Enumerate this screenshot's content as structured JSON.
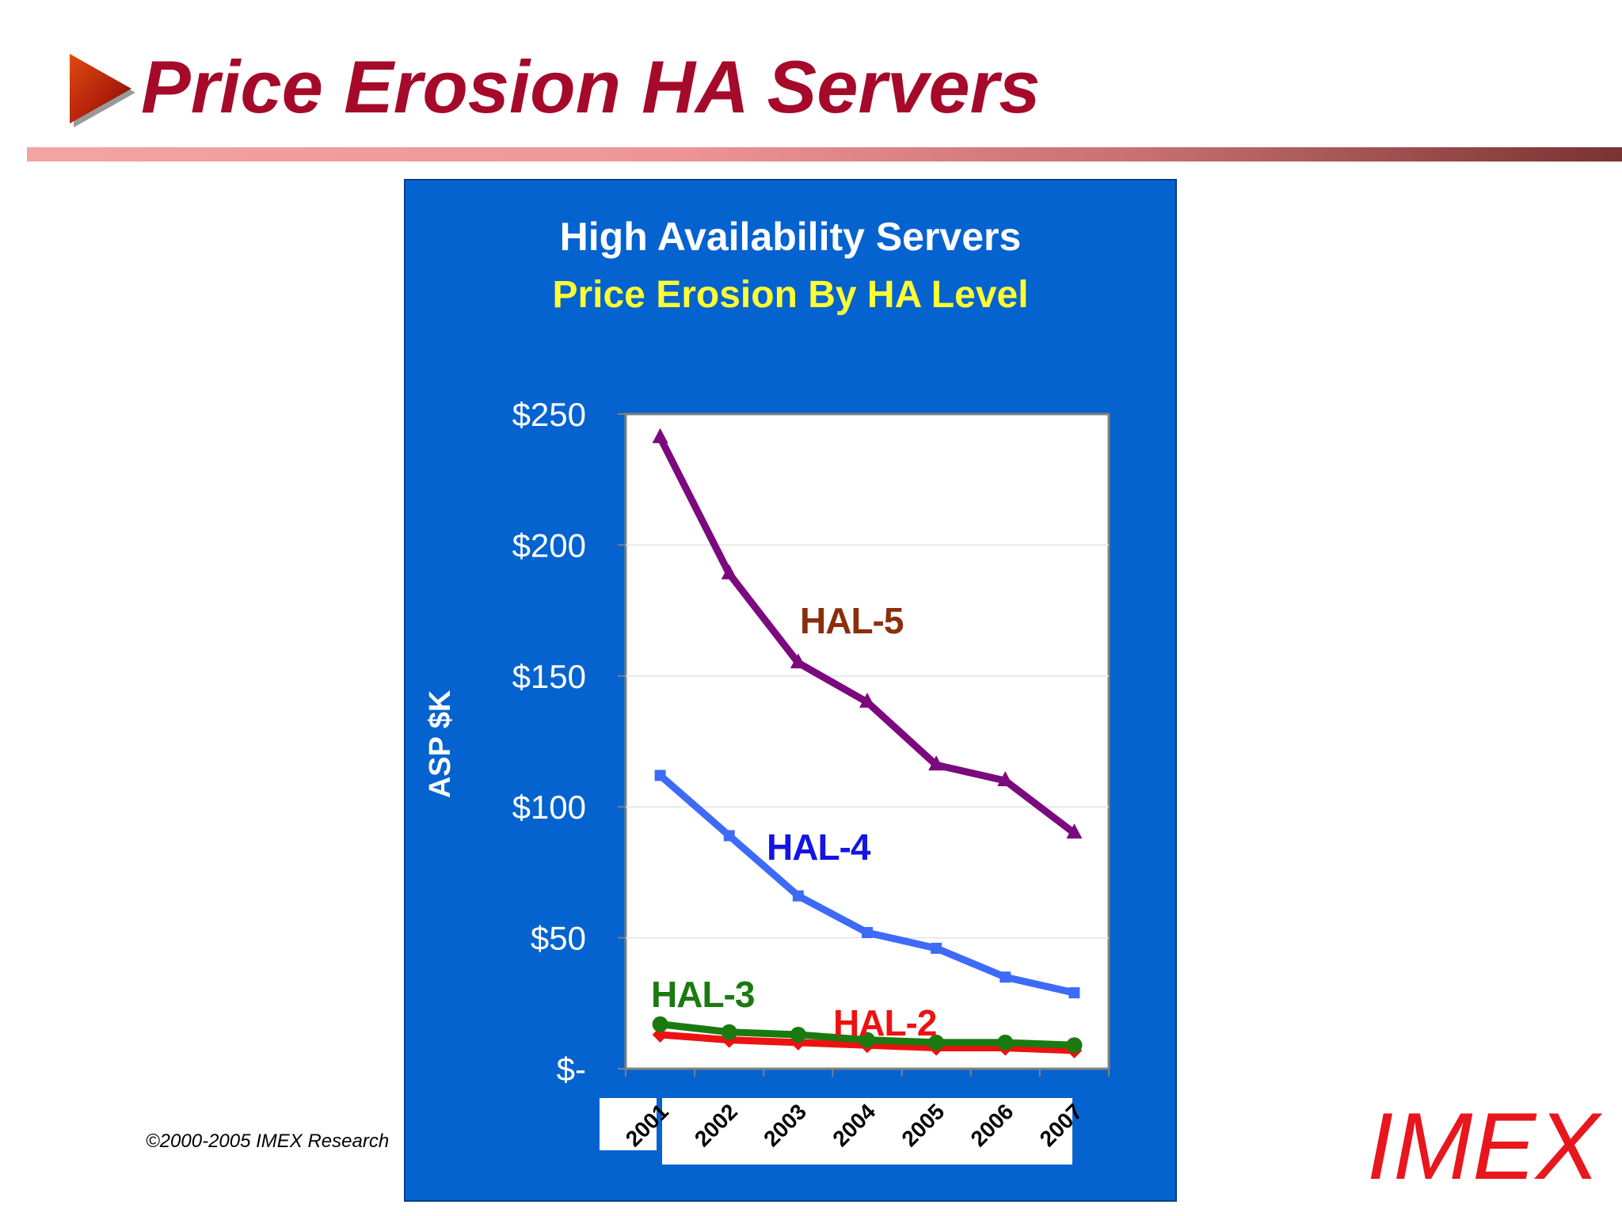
{
  "slide": {
    "title": "Price Erosion HA Servers",
    "copyright": "©2000-2005 IMEX Research",
    "logo": "IMEX",
    "title_color": "#a50a2a",
    "logo_color": "#e8161d",
    "bullet_icon": "play-triangle-icon"
  },
  "chart_data": {
    "type": "line",
    "title": "High Availability Servers",
    "subtitle": "Price Erosion By HA Level",
    "ylabel": "ASP $K",
    "xlabel": "",
    "ylim": [
      0,
      250
    ],
    "yticks": [
      0,
      50,
      100,
      150,
      200,
      250
    ],
    "ytick_labels": [
      "$-",
      "$50",
      "$100",
      "$150",
      "$200",
      "$250"
    ],
    "categories": [
      "2001",
      "2002",
      "2003",
      "2004",
      "2005",
      "2006",
      "2007"
    ],
    "grid": true,
    "legend": "inline labels",
    "background": "#0563cf",
    "plot_background": "#ffffff",
    "series": [
      {
        "name": "HAL-5",
        "values": [
          241,
          189,
          155,
          140,
          116,
          110,
          90
        ],
        "color": "#7b0a7e",
        "label_color": "#8b2e0a",
        "marker": "triangle"
      },
      {
        "name": "HAL-4",
        "values": [
          112,
          89,
          66,
          52,
          46,
          35,
          29
        ],
        "color": "#3d6bf7",
        "label_color": "#1414e6",
        "marker": "square"
      },
      {
        "name": "HAL-3",
        "values": [
          17,
          14,
          13,
          11,
          10,
          10,
          9
        ],
        "color": "#1a7a10",
        "label_color": "#1a7a10",
        "marker": "circle"
      },
      {
        "name": "HAL-2",
        "values": [
          13,
          11,
          10,
          9,
          8,
          8,
          7
        ],
        "color": "#ee1111",
        "label_color": "#ee1111",
        "marker": "diamond"
      }
    ]
  }
}
